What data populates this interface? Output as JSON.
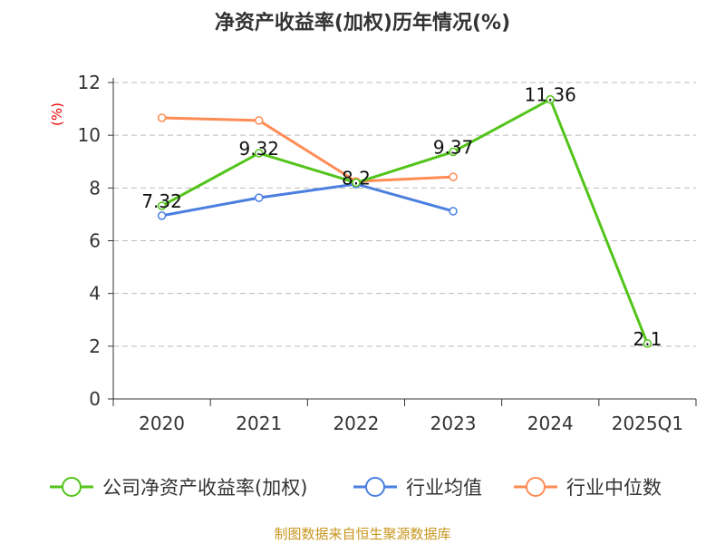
{
  "chart_data": {
    "type": "line",
    "title": "净资产收益率(加权)历年情况(%)",
    "ylabel": "(%)",
    "xlabel": "",
    "categories": [
      "2020",
      "2021",
      "2022",
      "2023",
      "2024",
      "2025Q1"
    ],
    "ylim": [
      0,
      12
    ],
    "yticks": [
      0,
      2,
      4,
      6,
      8,
      10,
      12
    ],
    "grid": true,
    "legend_position": "bottom",
    "series": [
      {
        "name": "公司净资产收益率(加权)",
        "color": "#52c41a",
        "values": [
          7.32,
          9.32,
          8.2,
          9.37,
          11.36,
          2.1
        ],
        "labels": [
          "7.32",
          "9.32",
          "8.2",
          "9.37",
          "11.36",
          "2.1"
        ]
      },
      {
        "name": "行业均值",
        "color": "#4a7fe0",
        "values": [
          6.95,
          7.63,
          8.15,
          7.12,
          null,
          null
        ]
      },
      {
        "name": "行业中位数",
        "color": "#ff8c55",
        "values": [
          10.66,
          10.56,
          8.25,
          8.42,
          null,
          null
        ]
      }
    ]
  },
  "footer": "制图数据来自恒生聚源数据库"
}
